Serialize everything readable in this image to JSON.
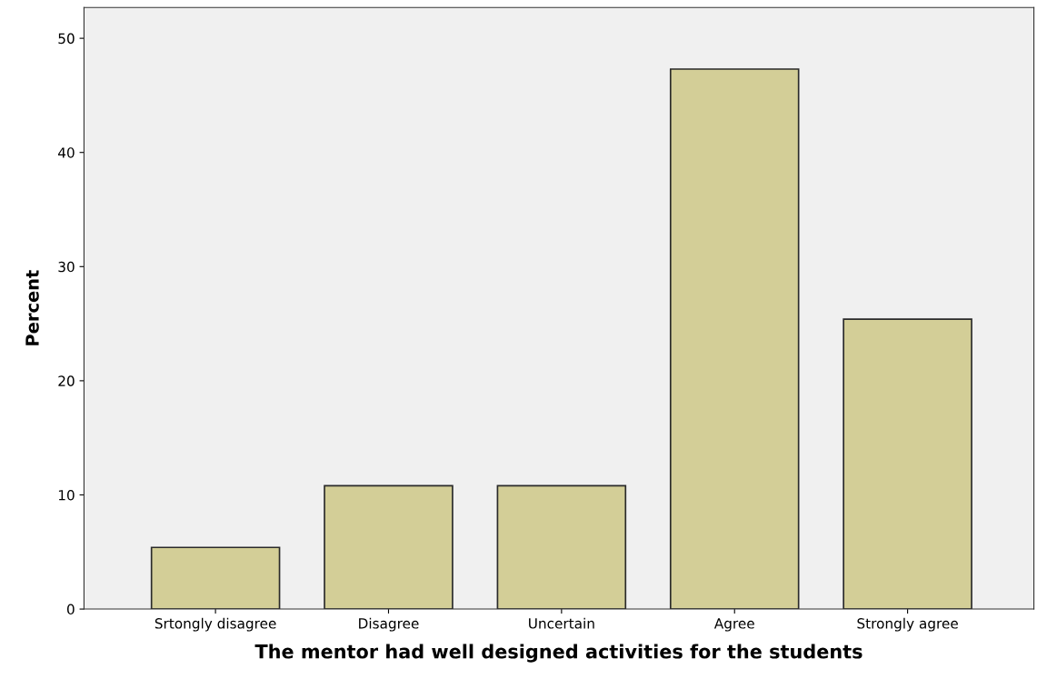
{
  "chart_data": {
    "type": "bar",
    "xlabel": "The mentor had well designed activities for the students",
    "ylabel": "Percent",
    "categories": [
      "Srtongly disagree",
      "Disagree",
      "Uncertain",
      "Agree",
      "Strongly agree"
    ],
    "values": [
      5.4,
      10.8,
      10.8,
      47.3,
      25.4
    ],
    "color": "#d3ce97",
    "ylim": [
      0,
      52.7
    ],
    "yticks": [
      0,
      10,
      20,
      30,
      40,
      50
    ],
    "grid": false
  }
}
